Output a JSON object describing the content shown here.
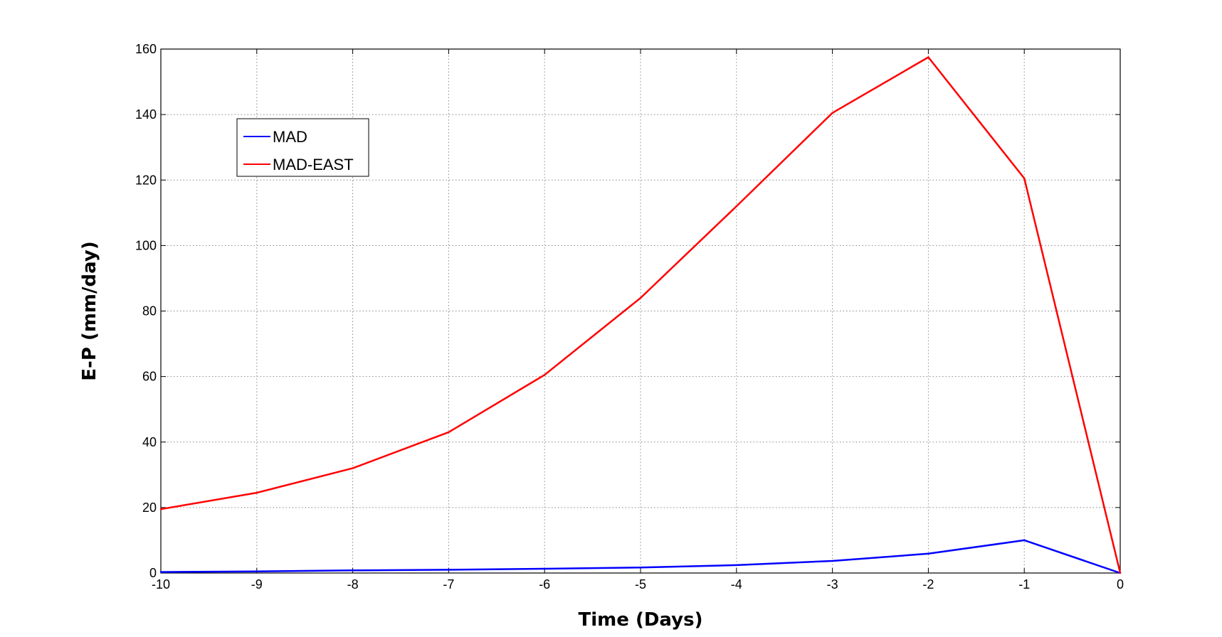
{
  "chart_data": {
    "type": "line",
    "title": "",
    "xlabel": "Time (Days)",
    "ylabel": "E-P (mm/day)",
    "xlim": [
      -10,
      0
    ],
    "ylim": [
      0,
      160
    ],
    "x": [
      -10,
      -9,
      -8,
      -7,
      -6,
      -5,
      -4,
      -3,
      -2,
      -1,
      0
    ],
    "xticks": [
      -10,
      -9,
      -8,
      -7,
      -6,
      -5,
      -4,
      -3,
      -2,
      -1,
      0
    ],
    "yticks": [
      0,
      20,
      40,
      60,
      80,
      100,
      120,
      140,
      160
    ],
    "grid": true,
    "legend_position": "top-left",
    "series": [
      {
        "name": "MAD",
        "color": "#0000ff",
        "values": [
          0.3,
          0.5,
          0.8,
          1.0,
          1.3,
          1.7,
          2.4,
          3.7,
          5.9,
          10.0,
          0.0
        ]
      },
      {
        "name": "MAD-EAST",
        "color": "#ff0000",
        "values": [
          19.5,
          24.5,
          32.0,
          43.0,
          60.5,
          84.0,
          112.0,
          140.5,
          157.5,
          120.5,
          0.0
        ]
      }
    ]
  }
}
